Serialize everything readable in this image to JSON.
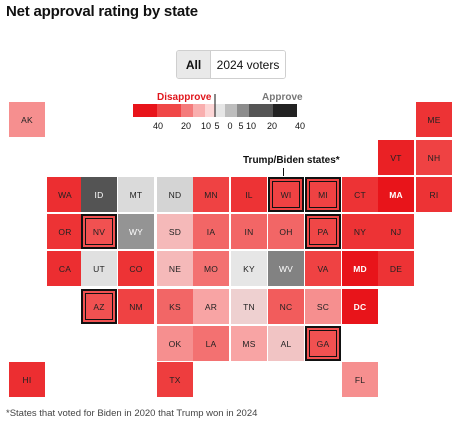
{
  "title": "Net approval rating by state",
  "toggle": {
    "options": [
      "All",
      "2024 voters"
    ],
    "selected": "All"
  },
  "legend": {
    "disapprove_label": "Disapprove",
    "approve_label": "Approve",
    "ticks": [
      "40",
      "20",
      "10",
      "5",
      "0",
      "5",
      "10",
      "20",
      "40"
    ],
    "disapprove_colors": [
      "#e8141a",
      "#f04747",
      "#f47b7b",
      "#f9aeae",
      "#fcd6d6"
    ],
    "approve_colors": [
      "#e6e6e6",
      "#bdbdbd",
      "#8c8c8c",
      "#555555",
      "#222222"
    ]
  },
  "callout": "Trump/Biden states*",
  "footnote": "*States that voted for Biden in 2020 that Trump won in 2024",
  "chart_data": {
    "type": "heatmap",
    "title": "Net approval rating by state",
    "scale_ticks": [
      -40,
      -20,
      -10,
      -5,
      0,
      5,
      10,
      20,
      40
    ],
    "tiles": [
      {
        "state": "AK",
        "col": 0,
        "row": 0,
        "value": -8
      },
      {
        "state": "ME",
        "col": 11,
        "row": 0,
        "value": -28
      },
      {
        "state": "VT",
        "col": 10,
        "row": 1,
        "value": -35
      },
      {
        "state": "NH",
        "col": 11,
        "row": 1,
        "value": -22
      },
      {
        "state": "WA",
        "col": 1,
        "row": 2,
        "value": -30
      },
      {
        "state": "ID",
        "col": 2,
        "row": 2,
        "value": 25,
        "flip": false
      },
      {
        "state": "MT",
        "col": 3,
        "row": 2,
        "value": 2
      },
      {
        "state": "ND",
        "col": 4,
        "row": 2,
        "value": 3
      },
      {
        "state": "MN",
        "col": 5,
        "row": 2,
        "value": -22
      },
      {
        "state": "IL",
        "col": 6,
        "row": 2,
        "value": -28
      },
      {
        "state": "WI",
        "col": 7,
        "row": 2,
        "value": -22,
        "flip": true
      },
      {
        "state": "MI",
        "col": 8,
        "row": 2,
        "value": -22,
        "flip": true
      },
      {
        "state": "CT",
        "col": 9,
        "row": 2,
        "value": -28
      },
      {
        "state": "MA",
        "col": 10,
        "row": 2,
        "value": -40
      },
      {
        "state": "RI",
        "col": 11,
        "row": 2,
        "value": -28
      },
      {
        "state": "OR",
        "col": 1,
        "row": 3,
        "value": -28
      },
      {
        "state": "NV",
        "col": 2,
        "row": 3,
        "value": -18,
        "flip": true
      },
      {
        "state": "WY",
        "col": 3,
        "row": 3,
        "value": 12
      },
      {
        "state": "SD",
        "col": 4,
        "row": 3,
        "value": -4
      },
      {
        "state": "IA",
        "col": 5,
        "row": 3,
        "value": -14
      },
      {
        "state": "IN",
        "col": 6,
        "row": 3,
        "value": -14
      },
      {
        "state": "OH",
        "col": 7,
        "row": 3,
        "value": -14
      },
      {
        "state": "PA",
        "col": 8,
        "row": 3,
        "value": -20,
        "flip": true
      },
      {
        "state": "NY",
        "col": 9,
        "row": 3,
        "value": -28
      },
      {
        "state": "NJ",
        "col": 10,
        "row": 3,
        "value": -28
      },
      {
        "state": "CA",
        "col": 1,
        "row": 4,
        "value": -30
      },
      {
        "state": "UT",
        "col": 2,
        "row": 4,
        "value": 1
      },
      {
        "state": "CO",
        "col": 3,
        "row": 4,
        "value": -28
      },
      {
        "state": "NE",
        "col": 4,
        "row": 4,
        "value": -4
      },
      {
        "state": "MO",
        "col": 5,
        "row": 4,
        "value": -12
      },
      {
        "state": "KY",
        "col": 6,
        "row": 4,
        "value": 0
      },
      {
        "state": "WV",
        "col": 7,
        "row": 4,
        "value": 15
      },
      {
        "state": "VA",
        "col": 8,
        "row": 4,
        "value": -22
      },
      {
        "state": "MD",
        "col": 9,
        "row": 4,
        "value": -40
      },
      {
        "state": "DE",
        "col": 10,
        "row": 4,
        "value": -28
      },
      {
        "state": "AZ",
        "col": 2,
        "row": 5,
        "value": -18,
        "flip": true
      },
      {
        "state": "NM",
        "col": 3,
        "row": 5,
        "value": -22
      },
      {
        "state": "KS",
        "col": 4,
        "row": 5,
        "value": -14
      },
      {
        "state": "AR",
        "col": 5,
        "row": 5,
        "value": -6
      },
      {
        "state": "TN",
        "col": 6,
        "row": 5,
        "value": -2
      },
      {
        "state": "NC",
        "col": 7,
        "row": 5,
        "value": -16
      },
      {
        "state": "SC",
        "col": 8,
        "row": 5,
        "value": -8
      },
      {
        "state": "DC",
        "col": 9,
        "row": 5,
        "value": -45
      },
      {
        "state": "OK",
        "col": 4,
        "row": 6,
        "value": -8
      },
      {
        "state": "LA",
        "col": 5,
        "row": 6,
        "value": -12
      },
      {
        "state": "MS",
        "col": 6,
        "row": 6,
        "value": -6
      },
      {
        "state": "AL",
        "col": 7,
        "row": 6,
        "value": -3
      },
      {
        "state": "GA",
        "col": 8,
        "row": 6,
        "value": -18,
        "flip": true
      },
      {
        "state": "HI",
        "col": 0,
        "row": 7,
        "value": -30
      },
      {
        "state": "TX",
        "col": 4,
        "row": 7,
        "value": -24
      },
      {
        "state": "FL",
        "col": 9,
        "row": 7,
        "value": -8
      }
    ]
  }
}
